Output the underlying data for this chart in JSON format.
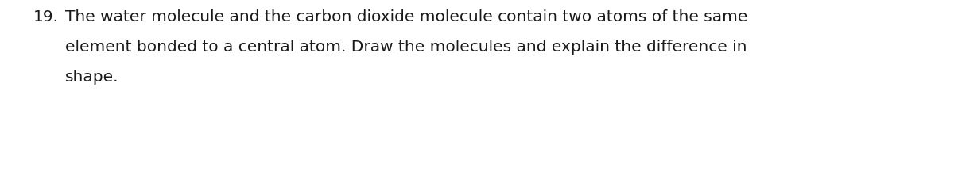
{
  "background_color": "#ffffff",
  "number": "19.",
  "line1": "The water molecule and the carbon dioxide molecule contain two atoms of the same",
  "line2": "element bonded to a central atom. Draw the molecules and explain the difference in",
  "line3": "shape.",
  "font_size": 14.5,
  "font_family": "DejaVu Sans",
  "text_color": "#1a1a1a",
  "fig_width": 12.0,
  "fig_height": 2.26,
  "dpi": 100
}
